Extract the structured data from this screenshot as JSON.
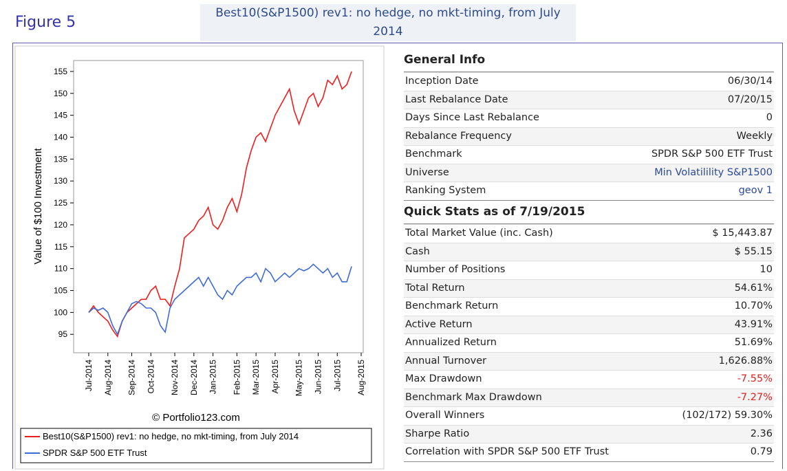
{
  "figure_label": "Figure 5",
  "header": {
    "title": "Best10(S&P1500) rev1: no hedge, no mkt-timing, from July 2014"
  },
  "chart_data": {
    "type": "line",
    "ylabel": "Value of $100 Investment",
    "annotation": "© Portfolio123.com",
    "categories": [
      "Jul-2014",
      null,
      null,
      null,
      "Aug-2014",
      null,
      null,
      null,
      null,
      "Sep-2014",
      null,
      null,
      null,
      "Oct-2014",
      null,
      null,
      null,
      null,
      "Nov-2014",
      null,
      null,
      null,
      "Dec-2014",
      null,
      null,
      null,
      "Jan-2015",
      null,
      null,
      null,
      null,
      "Feb-2015",
      null,
      null,
      null,
      "Mar-2015",
      null,
      null,
      null,
      "Apr-2015",
      null,
      null,
      null,
      null,
      "May-2015",
      null,
      null,
      null,
      "Jun-2015",
      null,
      null,
      null,
      "Jul-2015",
      null,
      null,
      null,
      null,
      "Aug-2015"
    ],
    "series": [
      {
        "name": "Best10(S&P1500) rev1:  no hedge, no mkt-timing, from July 2014",
        "color": "#ee1c1c",
        "values": [
          100,
          101.5,
          100,
          99,
          98,
          96,
          94.5,
          98,
          100,
          101,
          102,
          103,
          103,
          105,
          106,
          103,
          103,
          101.5,
          106,
          110,
          117,
          118,
          119,
          121,
          122,
          124,
          120,
          119,
          121,
          124,
          126,
          123,
          127,
          133,
          137,
          140,
          141,
          139,
          142,
          145,
          147,
          149,
          151,
          146,
          143,
          146,
          149,
          150,
          147,
          149,
          153,
          152,
          154,
          151,
          152,
          155,
          null,
          null
        ]
      },
      {
        "name": "SPDR S&P 500 ETF Trust",
        "color": "#3d6bd6",
        "values": [
          100,
          101,
          100.5,
          101,
          100,
          97,
          95,
          98,
          100,
          102,
          102.5,
          102,
          101,
          101,
          100,
          97,
          95.5,
          101,
          103,
          104,
          105,
          106,
          107,
          108,
          106,
          108,
          106,
          104,
          103,
          105,
          104,
          106,
          107,
          108,
          108,
          109,
          107,
          110,
          109,
          107,
          108,
          109,
          108,
          109,
          110,
          109.5,
          110,
          111,
          110,
          109,
          110,
          108,
          109,
          107,
          107,
          110.5,
          null,
          null
        ]
      }
    ],
    "ylim": [
      90.8,
      157.5
    ],
    "yticks": [
      95,
      100,
      105,
      110,
      115,
      120,
      125,
      130,
      135,
      140,
      145,
      150,
      155
    ],
    "grid": false
  },
  "general_info": {
    "title": "General Info",
    "rows": [
      [
        "Inception Date",
        "06/30/14"
      ],
      [
        "Last Rebalance Date",
        "07/20/15"
      ],
      [
        "Days Since Last Rebalance",
        "0"
      ],
      [
        "Rebalance Frequency",
        "Weekly"
      ],
      [
        "Benchmark",
        "SPDR S&P 500 ETF Trust"
      ],
      [
        "Universe",
        "Min Volatilility S&P1500"
      ],
      [
        "Ranking System",
        "geov 1"
      ]
    ]
  },
  "quick_stats": {
    "title": "Quick Stats as of 7/19/2015",
    "rows": [
      [
        "Total Market Value (inc. Cash)",
        "$ 15,443.87"
      ],
      [
        "Cash",
        "$ 55.15"
      ],
      [
        "Number of Positions",
        "10"
      ],
      [
        "Total Return",
        "54.61%"
      ],
      [
        "Benchmark Return",
        "10.70%"
      ],
      [
        "Active Return",
        "43.91%"
      ],
      [
        "Annualized Return",
        "51.69%"
      ],
      [
        "Annual Turnover",
        "1,626.88%"
      ],
      [
        "Max Drawdown",
        "-7.55%"
      ],
      [
        "Benchmark Max Drawdown",
        "-7.27%"
      ],
      [
        "Overall Winners",
        "(102/172) 59.30%"
      ],
      [
        "Sharpe Ratio",
        "2.36"
      ],
      [
        "Correlation with SPDR S&P 500 ETF Trust",
        "0.79"
      ]
    ]
  }
}
